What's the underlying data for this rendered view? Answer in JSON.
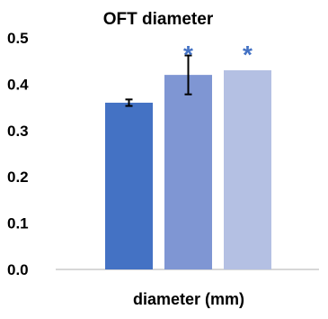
{
  "chart_data": {
    "type": "bar",
    "title": "OFT diameter",
    "xlabel": "diameter (mm)",
    "ylabel": "",
    "ylim": [
      0,
      0.5
    ],
    "yticks": [
      "0.0",
      "0.1",
      "0.2",
      "0.3",
      "0.4",
      "0.5"
    ],
    "grid": false,
    "legend": "none",
    "bars": [
      {
        "value": 0.36,
        "error": 0.007,
        "color": "#4472C4",
        "annotation": ""
      },
      {
        "value": 0.42,
        "error": 0.042,
        "color": "#7F96D3",
        "annotation": "*"
      },
      {
        "value": 0.43,
        "error": 0,
        "color": "#B4C0E3",
        "annotation": "*"
      }
    ],
    "annotation_color": "#4472C4"
  }
}
